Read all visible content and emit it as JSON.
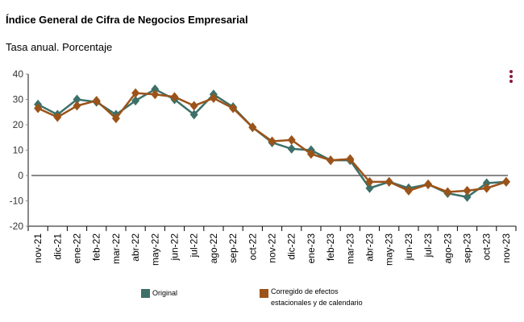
{
  "title": "Índice General de Cifra de Negocios Empresarial",
  "subtitle": "Tasa anual. Porcentaje",
  "menu_icon": "kebab-menu-icon",
  "chart_data": {
    "type": "line",
    "title": "Índice General de Cifra de Negocios Empresarial",
    "subtitle": "Tasa anual. Porcentaje",
    "categories": [
      "nov-21",
      "dic-21",
      "ene-22",
      "feb-22",
      "mar-22",
      "abr-22",
      "may-22",
      "jun-22",
      "jul-22",
      "ago-22",
      "sep-22",
      "oct-22",
      "nov-22",
      "dic-22",
      "ene-23",
      "feb-23",
      "mar-23",
      "abr-23",
      "may-23",
      "jun-23",
      "jul-23",
      "ago-23",
      "sep-23",
      "oct-23",
      "nov-23"
    ],
    "ylim": [
      -20,
      40
    ],
    "yticks": [
      40,
      30,
      20,
      10,
      0,
      -10,
      -20
    ],
    "legend_position": "bottom",
    "series": [
      {
        "name": "Original",
        "color": "#3d7068",
        "values": [
          28,
          24,
          30,
          29,
          24,
          29.5,
          34,
          30,
          24,
          32,
          27,
          19,
          13,
          10.5,
          10,
          6,
          6,
          -5,
          -2.5,
          -5,
          -3.5,
          -7,
          -8.5,
          -3,
          -2.5
        ]
      },
      {
        "name": "Corregido de efectos estacionales y de calendario",
        "legend_lines": [
          "Corregido de efectos",
          "estacionales y de calendario"
        ],
        "color": "#9c5319",
        "values": [
          26.5,
          23,
          27.5,
          29.5,
          22.5,
          32.5,
          32,
          31,
          27.5,
          30.5,
          26.5,
          19,
          13.5,
          14,
          8.5,
          6,
          6.5,
          -2.5,
          -2.5,
          -6,
          -3.5,
          -6.5,
          -6,
          -5,
          -2.5
        ]
      }
    ]
  }
}
